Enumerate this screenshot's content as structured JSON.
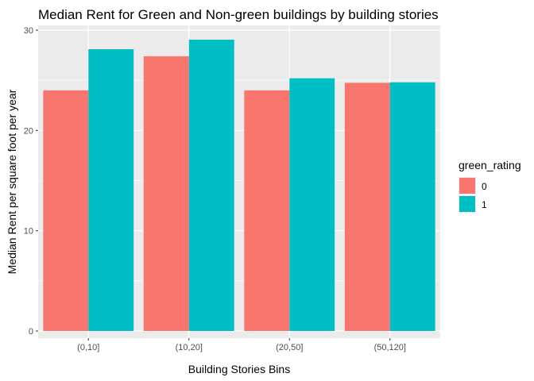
{
  "chart_data": {
    "type": "bar",
    "title": "Median Rent for Green and Non-green buildings by building stories",
    "xlabel": "Building Stories Bins",
    "ylabel": "Median Rent per square foot per year",
    "categories": [
      "(0,10]",
      "(10,20]",
      "(20,50]",
      "(50,120]"
    ],
    "series": [
      {
        "name": "0",
        "color": "#F8766D",
        "values": [
          24.0,
          27.4,
          24.0,
          24.75
        ]
      },
      {
        "name": "1",
        "color": "#00BFC4",
        "values": [
          28.1,
          29.05,
          25.2,
          24.8
        ]
      }
    ],
    "ylim": [
      0,
      30
    ],
    "yticks": [
      0,
      10,
      20,
      30
    ],
    "grid": true,
    "legend": {
      "title": "green_rating",
      "placement": "right"
    },
    "panel_color": "#EBEBEB"
  }
}
